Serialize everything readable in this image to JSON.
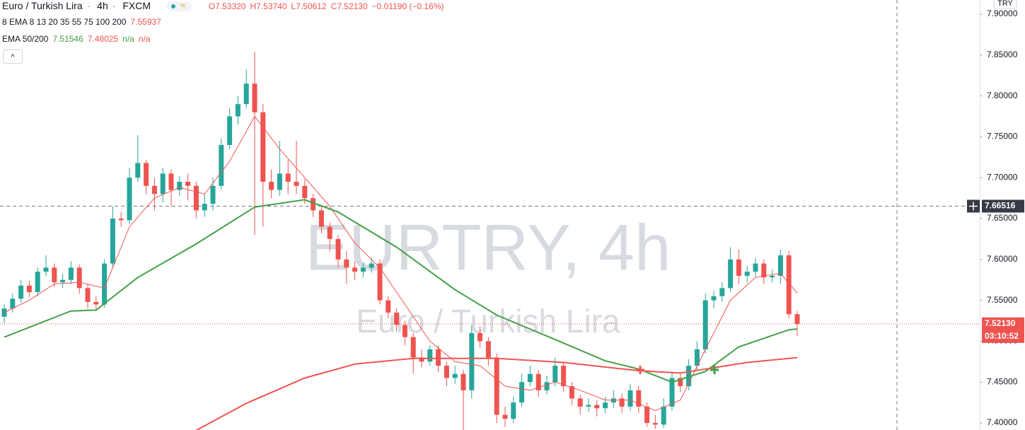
{
  "header": {
    "symbol": "Euro / Turkish Lira",
    "interval": "4h",
    "source": "FXCM",
    "ohlc": [
      "O7.53320",
      "H7.53740",
      "L7.50612",
      "C7.52130",
      "−0.01190 (−0.16%)"
    ],
    "indicator1": {
      "name": "8 EMA 8 13 20 35 55 75 100 200",
      "values": [
        "7.55937"
      ]
    },
    "indicator2": {
      "name": "EMA 50/200",
      "values": [
        "7.51546",
        "7.48025",
        "n/a",
        "n/a"
      ]
    }
  },
  "chart_data": {
    "type": "candlestick",
    "currency": "TRY",
    "watermark_title": "EURTRY, 4h",
    "watermark_subtitle": "Euro / Turkish Lira",
    "ylim": [
      7.3914,
      7.9173
    ],
    "yticks": [
      {
        "value": 7.4,
        "label": "7.40000"
      },
      {
        "value": 7.45,
        "label": "7.45000"
      },
      {
        "value": 7.5,
        "label": "7.50000"
      },
      {
        "value": 7.55,
        "label": "7.55000"
      },
      {
        "value": 7.6,
        "label": "7.60000"
      },
      {
        "value": 7.65,
        "label": "7.65000"
      },
      {
        "value": 7.7,
        "label": "7.70000"
      },
      {
        "value": 7.75,
        "label": "7.75000"
      },
      {
        "value": 7.8,
        "label": "7.80000"
      },
      {
        "value": 7.85,
        "label": "7.85000"
      },
      {
        "value": 7.9,
        "label": "7.90000"
      }
    ],
    "grid": false,
    "up_color": "#26a69a",
    "down_color": "#ef5350",
    "open": [
      7.53,
      7.54,
      7.552,
      7.568,
      7.56,
      7.585,
      7.59,
      7.572,
      7.575,
      7.59,
      7.565,
      7.548,
      7.545,
      7.595,
      7.65,
      7.648,
      7.7,
      7.718,
      7.69,
      7.68,
      7.705,
      7.685,
      7.695,
      7.69,
      7.66,
      7.668,
      7.69,
      7.74,
      7.775,
      7.79,
      7.815,
      7.78,
      7.695,
      7.685,
      7.705,
      7.695,
      7.69,
      7.675,
      7.66,
      7.64,
      7.625,
      7.6,
      7.59,
      7.585,
      7.59,
      7.595,
      7.55,
      7.535,
      7.52,
      7.505,
      7.48,
      7.475,
      7.49,
      7.47,
      7.455,
      7.46,
      7.44,
      7.51,
      7.5,
      7.48,
      7.41,
      7.405,
      7.425,
      7.45,
      7.46,
      7.44,
      7.45,
      7.47,
      7.445,
      7.43,
      7.42,
      7.422,
      7.418,
      7.425,
      7.43,
      7.42,
      7.44,
      7.42,
      7.4,
      7.398,
      7.42,
      7.455,
      7.445,
      7.47,
      7.49,
      7.55,
      7.555,
      7.565,
      7.6,
      7.58,
      7.585,
      7.595,
      7.578,
      7.58,
      7.605,
      7.533
    ],
    "high": [
      7.545,
      7.558,
      7.575,
      7.574,
      7.59,
      7.605,
      7.595,
      7.582,
      7.598,
      7.594,
      7.57,
      7.555,
      7.6,
      7.665,
      7.658,
      7.712,
      7.752,
      7.722,
      7.7,
      7.712,
      7.71,
      7.702,
      7.705,
      7.695,
      7.68,
      7.7,
      7.748,
      7.785,
      7.8,
      7.832,
      7.854,
      7.79,
      7.71,
      7.745,
      7.722,
      7.745,
      7.698,
      7.68,
      7.665,
      7.645,
      7.63,
      7.61,
      7.598,
      7.596,
      7.602,
      7.6,
      7.555,
      7.54,
      7.525,
      7.51,
      7.49,
      7.495,
      7.495,
      7.475,
      7.47,
      7.465,
      7.52,
      7.518,
      7.505,
      7.485,
      7.42,
      7.432,
      7.46,
      7.47,
      7.465,
      7.458,
      7.48,
      7.475,
      7.45,
      7.435,
      7.43,
      7.428,
      7.432,
      7.44,
      7.436,
      7.448,
      7.445,
      7.425,
      7.41,
      7.43,
      7.462,
      7.46,
      7.478,
      7.5,
      7.558,
      7.562,
      7.572,
      7.615,
      7.612,
      7.592,
      7.602,
      7.6,
      7.588,
      7.612,
      7.61,
      7.537
    ],
    "low": [
      7.522,
      7.535,
      7.547,
      7.554,
      7.555,
      7.58,
      7.566,
      7.565,
      7.57,
      7.558,
      7.54,
      7.538,
      7.541,
      7.59,
      7.64,
      7.643,
      7.695,
      7.68,
      7.66,
      7.67,
      7.665,
      7.678,
      7.672,
      7.65,
      7.652,
      7.66,
      7.685,
      7.735,
      7.765,
      7.785,
      7.63,
      7.64,
      7.675,
      7.678,
      7.68,
      7.68,
      7.668,
      7.652,
      7.632,
      7.61,
      7.59,
      7.57,
      7.575,
      7.578,
      7.584,
      7.545,
      7.528,
      7.512,
      7.495,
      7.46,
      7.468,
      7.47,
      7.462,
      7.445,
      7.448,
      7.391,
      7.43,
      7.492,
      7.47,
      7.4,
      7.395,
      7.4,
      7.42,
      7.445,
      7.432,
      7.435,
      7.445,
      7.438,
      7.422,
      7.41,
      7.414,
      7.408,
      7.412,
      7.418,
      7.412,
      7.415,
      7.412,
      7.395,
      7.393,
      7.394,
      7.415,
      7.438,
      7.44,
      7.465,
      7.485,
      7.54,
      7.548,
      7.56,
      7.57,
      7.572,
      7.578,
      7.57,
      7.572,
      7.57,
      7.528,
      7.506
    ],
    "close": [
      7.54,
      7.552,
      7.568,
      7.56,
      7.585,
      7.59,
      7.572,
      7.575,
      7.59,
      7.565,
      7.548,
      7.545,
      7.595,
      7.65,
      7.648,
      7.7,
      7.718,
      7.69,
      7.68,
      7.705,
      7.685,
      7.695,
      7.69,
      7.66,
      7.668,
      7.69,
      7.74,
      7.775,
      7.79,
      7.815,
      7.78,
      7.695,
      7.685,
      7.705,
      7.695,
      7.69,
      7.675,
      7.66,
      7.64,
      7.625,
      7.6,
      7.59,
      7.585,
      7.59,
      7.595,
      7.55,
      7.535,
      7.52,
      7.505,
      7.48,
      7.475,
      7.49,
      7.47,
      7.455,
      7.46,
      7.44,
      7.51,
      7.5,
      7.48,
      7.41,
      7.405,
      7.425,
      7.45,
      7.46,
      7.44,
      7.45,
      7.47,
      7.445,
      7.43,
      7.42,
      7.422,
      7.418,
      7.425,
      7.43,
      7.42,
      7.44,
      7.42,
      7.4,
      7.398,
      7.42,
      7.455,
      7.445,
      7.47,
      7.49,
      7.55,
      7.555,
      7.565,
      7.6,
      7.58,
      7.585,
      7.595,
      7.578,
      7.58,
      7.605,
      7.533,
      7.521
    ],
    "lines": [
      {
        "color": "#ef5350",
        "width": 1,
        "x": [
          0,
          3,
          6,
          9,
          12,
          15,
          18,
          21,
          24,
          27,
          30,
          33,
          36,
          39,
          42,
          45,
          48,
          51,
          54,
          57,
          60,
          63,
          66,
          69,
          72,
          75,
          78,
          81,
          84,
          87,
          90,
          93,
          95
        ],
        "values": [
          7.535,
          7.55,
          7.57,
          7.572,
          7.565,
          7.64,
          7.675,
          7.688,
          7.68,
          7.72,
          7.775,
          7.735,
          7.7,
          7.665,
          7.62,
          7.59,
          7.545,
          7.5,
          7.475,
          7.47,
          7.445,
          7.44,
          7.45,
          7.44,
          7.428,
          7.428,
          7.415,
          7.428,
          7.49,
          7.55,
          7.578,
          7.583,
          7.559
        ]
      },
      {
        "color": "#43a047",
        "width": 2,
        "x": [
          0,
          8,
          11,
          16,
          23,
          30,
          36,
          40,
          47,
          54,
          59,
          66,
          72,
          76,
          80,
          84,
          88,
          94,
          95
        ],
        "values": [
          7.505,
          7.537,
          7.538,
          7.578,
          7.619,
          7.664,
          7.673,
          7.658,
          7.615,
          7.563,
          7.532,
          7.502,
          7.476,
          7.466,
          7.45,
          7.463,
          7.493,
          7.514,
          7.515
        ]
      },
      {
        "color": "#ef5350",
        "width": 2,
        "x": [
          23,
          29,
          36,
          42,
          49,
          59,
          67,
          76,
          81,
          84,
          89,
          95
        ],
        "values": [
          7.391,
          7.424,
          7.455,
          7.472,
          7.479,
          7.479,
          7.474,
          7.464,
          7.461,
          7.466,
          7.474,
          7.48
        ]
      }
    ],
    "last_price": {
      "value": 7.5213,
      "label": "7.52130"
    },
    "countdown": "03:10:52",
    "crosshair": 7.66516
  }
}
